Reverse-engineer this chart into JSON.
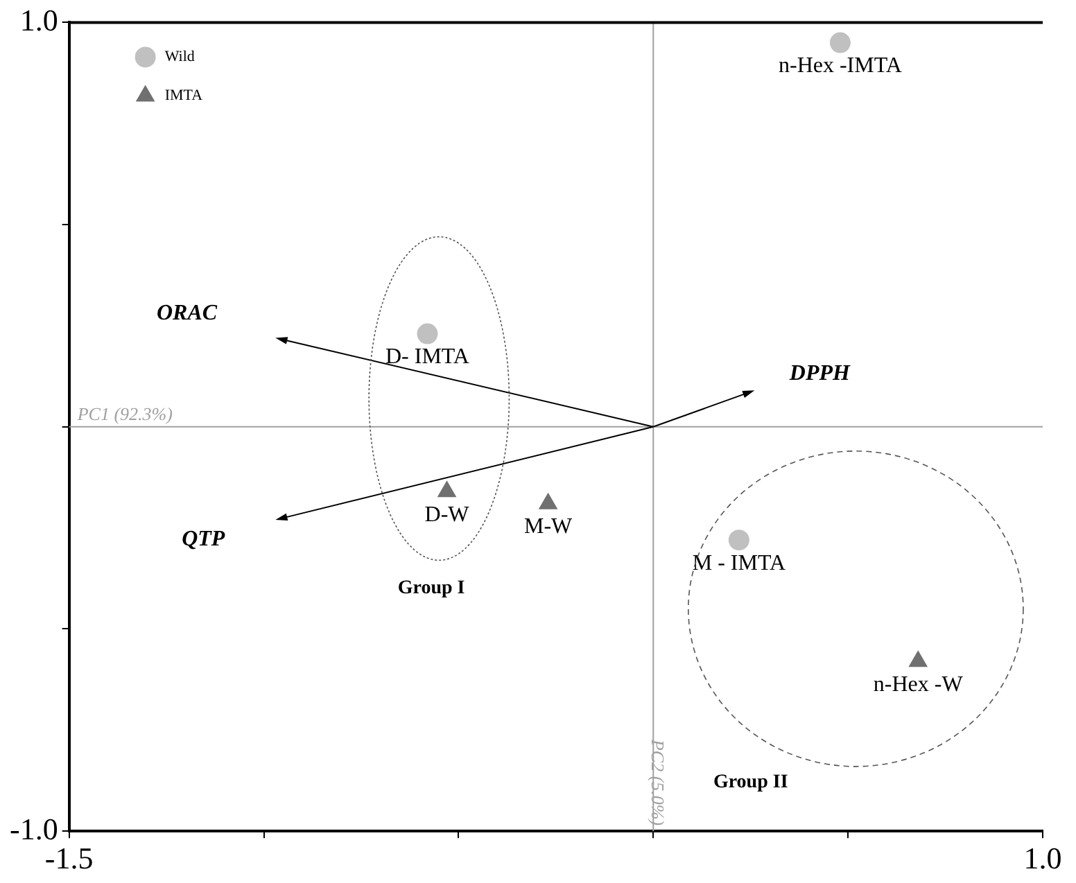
{
  "chart_data": {
    "type": "scatter",
    "xlim": [
      -1.5,
      1.0
    ],
    "xticks": [
      -1.5,
      {
        "value": -1.0,
        "label": null
      },
      {
        "value": -0.5,
        "label": null
      },
      {
        "value": 0,
        "label": null
      },
      {
        "value": 0.5,
        "label": null
      },
      {
        "value": 1.0,
        "label": "1.0"
      }
    ],
    "ylim": [
      -1.0,
      1.0
    ],
    "yticks": [
      {
        "value": -1.0,
        "label": "-1.0"
      },
      {
        "value": -0.5,
        "label": null
      },
      {
        "value": 0,
        "label": null
      },
      {
        "value": 0.5,
        "label": null
      },
      {
        "value": 1.0,
        "label": "1.0"
      }
    ],
    "grid": false,
    "legend": "top left",
    "series": [
      {
        "name": "Wild",
        "marker": "circle",
        "color": "#c0c0c0",
        "x": [
          0.48,
          -0.58,
          0.22
        ],
        "values": [
          0.95,
          0.23,
          -0.28
        ],
        "value_labels": [
          "n-Hex -IMTA",
          "D- IMTA",
          "M - IMTA"
        ]
      },
      {
        "name": "IMTA",
        "marker": "triangle",
        "color": "#707070",
        "x": [
          -0.53,
          -0.27,
          0.68
        ],
        "values": [
          -0.16,
          -0.19,
          -0.58
        ],
        "value_labels": [
          "D-W",
          "M-W",
          "n-Hex -W"
        ]
      }
    ],
    "ref_lines": [
      {
        "axis": "x",
        "value": 0,
        "label": "PC2 (5.0%)",
        "color": "#a0a0a0"
      },
      {
        "axis": "y",
        "value": 0,
        "label": "PC1 (92.3%)",
        "color": "#a0a0a0"
      }
    ],
    "annotations": [
      "ORAC",
      "DPPH",
      "QTP",
      "Group I",
      "Group II"
    ]
  }
}
